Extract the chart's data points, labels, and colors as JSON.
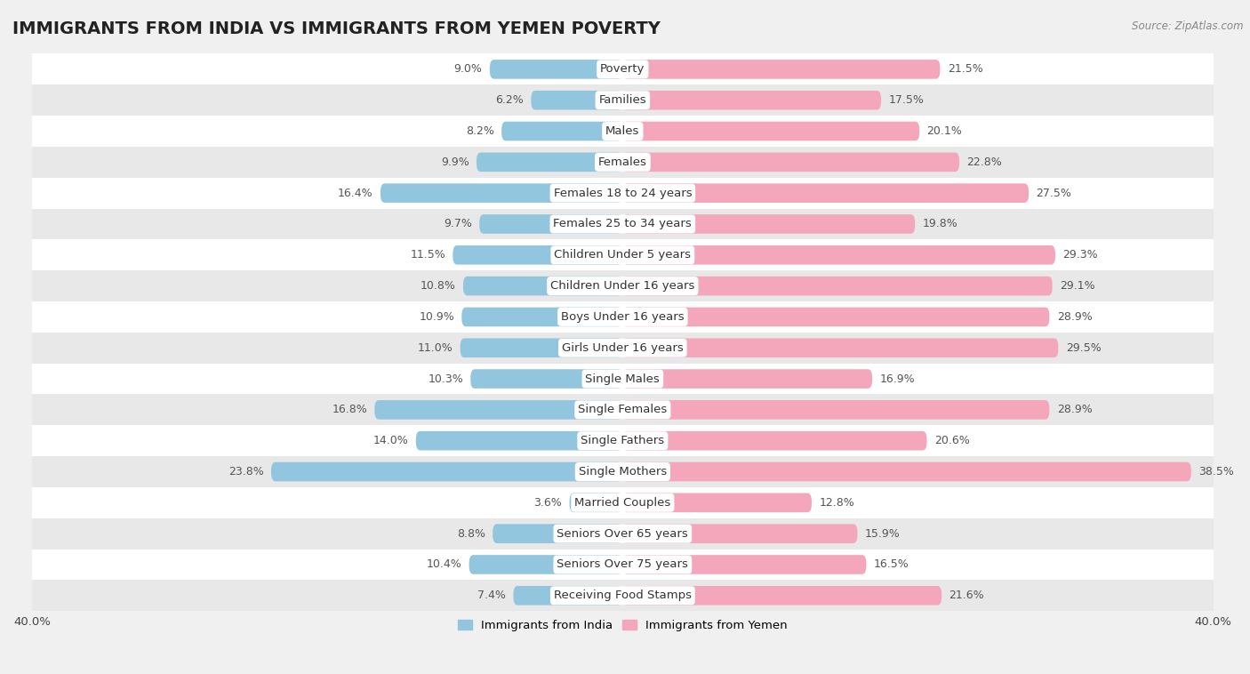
{
  "title": "IMMIGRANTS FROM INDIA VS IMMIGRANTS FROM YEMEN POVERTY",
  "source": "Source: ZipAtlas.com",
  "categories": [
    "Poverty",
    "Families",
    "Males",
    "Females",
    "Females 18 to 24 years",
    "Females 25 to 34 years",
    "Children Under 5 years",
    "Children Under 16 years",
    "Boys Under 16 years",
    "Girls Under 16 years",
    "Single Males",
    "Single Females",
    "Single Fathers",
    "Single Mothers",
    "Married Couples",
    "Seniors Over 65 years",
    "Seniors Over 75 years",
    "Receiving Food Stamps"
  ],
  "india_values": [
    9.0,
    6.2,
    8.2,
    9.9,
    16.4,
    9.7,
    11.5,
    10.8,
    10.9,
    11.0,
    10.3,
    16.8,
    14.0,
    23.8,
    3.6,
    8.8,
    10.4,
    7.4
  ],
  "yemen_values": [
    21.5,
    17.5,
    20.1,
    22.8,
    27.5,
    19.8,
    29.3,
    29.1,
    28.9,
    29.5,
    16.9,
    28.9,
    20.6,
    38.5,
    12.8,
    15.9,
    16.5,
    21.6
  ],
  "india_color": "#92c5de",
  "yemen_color": "#f4a6bb",
  "axis_max": 40.0,
  "background_color": "#f0f0f0",
  "row_color_even": "#ffffff",
  "row_color_odd": "#e8e8e8",
  "title_fontsize": 14,
  "label_fontsize": 9.5,
  "value_fontsize": 9,
  "legend_india": "Immigrants from India",
  "legend_yemen": "Immigrants from Yemen"
}
